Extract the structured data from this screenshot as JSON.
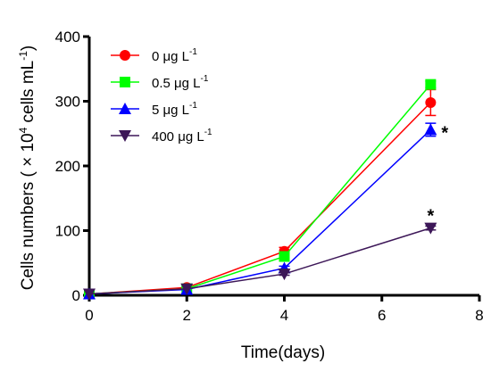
{
  "chart_data": {
    "type": "line",
    "x": [
      0,
      2,
      4,
      7
    ],
    "xlabel": "Time(days)",
    "ylabel_parts": {
      "main": "Cells numbers ( × 10",
      "sup1": "4",
      "mid": " cells mL",
      "sup2": "-1",
      "end": ")"
    },
    "xlim": [
      0,
      8
    ],
    "ylim": [
      0,
      400
    ],
    "xticks": [
      "0",
      "2",
      "4",
      "6",
      "8"
    ],
    "yticks": [
      "0",
      "100",
      "200",
      "300",
      "400"
    ],
    "grid": false,
    "legend_position": "top-left",
    "series": [
      {
        "name_main": "0 μg L",
        "name_sup": "-1",
        "color": "#ff0000",
        "marker": "circle",
        "values": [
          2,
          12,
          68,
          298
        ],
        "errors": [
          0,
          0,
          6,
          20
        ]
      },
      {
        "name_main": "0.5 μg L",
        "name_sup": "-1",
        "color": "#00ff00",
        "marker": "square",
        "values": [
          2,
          10,
          60,
          326
        ],
        "errors": [
          0,
          0,
          4,
          5
        ]
      },
      {
        "name_main": "5 μg L",
        "name_sup": "-1",
        "color": "#0000ff",
        "marker": "triangle-up",
        "values": [
          2,
          9,
          42,
          256
        ],
        "errors": [
          0,
          0,
          3,
          10
        ]
      },
      {
        "name_main": "400 μg L",
        "name_sup": "-1",
        "color": "#3d1758",
        "marker": "triangle-down",
        "values": [
          2,
          10,
          33,
          104
        ],
        "errors": [
          0,
          0,
          2,
          3
        ]
      }
    ],
    "annotations": [
      {
        "text": "*",
        "x": 7,
        "y": 253
      },
      {
        "text": "*",
        "x": 7,
        "y": 125
      }
    ]
  }
}
